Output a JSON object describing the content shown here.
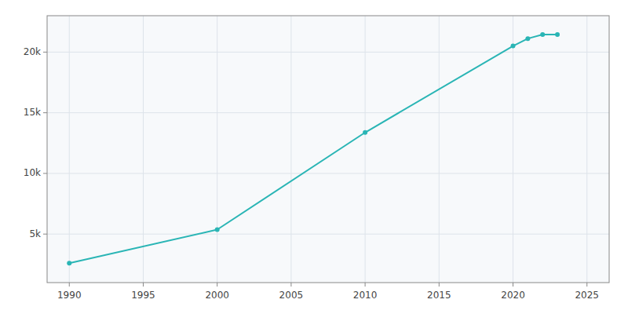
{
  "chart_data": {
    "type": "line",
    "x": [
      1990,
      2000,
      2010,
      2020,
      2021,
      2022,
      2023
    ],
    "values": [
      2600,
      5367,
      13374,
      20504,
      21114,
      21441,
      21451
    ],
    "color": "#2ab5b5",
    "marker": "circle",
    "xlim": [
      1988.5,
      2026.5
    ],
    "ylim": [
      1000,
      23000
    ],
    "xticks": [
      1990,
      1995,
      2000,
      2005,
      2010,
      2015,
      2020,
      2025
    ],
    "yticks": [
      {
        "value": 5000,
        "label": "5k"
      },
      {
        "value": 10000,
        "label": "10k"
      },
      {
        "value": 15000,
        "label": "15k"
      },
      {
        "value": 20000,
        "label": "20k"
      }
    ],
    "grid": true
  }
}
